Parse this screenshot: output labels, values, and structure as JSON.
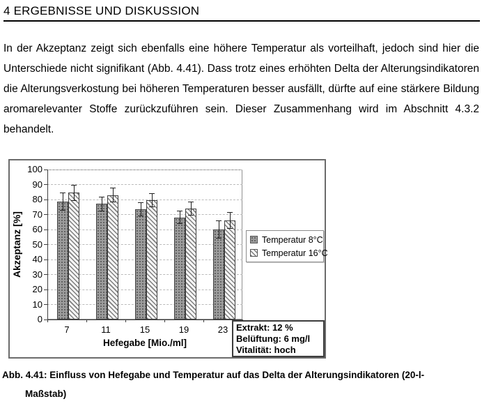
{
  "document": {
    "heading": "4 ERGEBNISSE UND DISKUSSION",
    "paragraph": "In der Akzeptanz zeigt sich ebenfalls eine höhere Temperatur als vorteilhaft, jedoch sind hier die Unterschiede nicht signifikant (Abb. 4.41). Dass trotz eines erhöhten Delta der Alterungsindikatoren die Alterungsverkostung bei höheren Temperaturen besser ausfällt, dürfte auf eine stärkere Bildung aromarelevanter Stoffe zurückzuführen sein. Dieser Zusammenhang wird im Abschnitt 4.3.2 behandelt.",
    "caption_lines": [
      "Abb. 4.41: Einfluss von Hefegabe und Temperatur auf das Delta der Alterungsindikatoren (20-l-",
      "Maßstab)"
    ]
  },
  "chart_data": {
    "type": "bar",
    "title": "",
    "xlabel": "Hefegabe [Mio./ml]",
    "ylabel": "Akzeptanz [%]",
    "ylim": [
      0,
      100
    ],
    "yticks": [
      0,
      10,
      20,
      30,
      40,
      50,
      60,
      70,
      80,
      90,
      100
    ],
    "categories": [
      "7",
      "11",
      "15",
      "19",
      "23"
    ],
    "series": [
      {
        "name": "Temperatur 8°C",
        "pattern": "gray-dotted",
        "values": [
          78.5,
          77,
          73.5,
          68,
          60
        ],
        "errors": [
          6,
          5,
          4.5,
          4.5,
          6
        ]
      },
      {
        "name": "Temperatur 16°C",
        "pattern": "diagonal-hatch",
        "values": [
          84.5,
          83,
          79.5,
          74,
          66
        ],
        "errors": [
          5.5,
          5,
          4.5,
          4.5,
          5.5
        ]
      }
    ],
    "grid": "horizontal-dashed",
    "legend_position": "right-inside",
    "annotation_box_lines": [
      "Extrakt: 12 %",
      "Belüftung: 6 mg/l",
      "Vitalität: hoch"
    ],
    "colors": {
      "background": "#ffffff",
      "text": "#000000",
      "bar1_fill": "#9c9c9c",
      "bar1_dot": "#4f4f4f",
      "bar2_bg": "#f5f5f5",
      "bar2_line": "#7f7f7f",
      "bar_border": "#3f3f3f",
      "grid": "#bbbbbb",
      "axis": "#404040",
      "plot_border": "#909090",
      "error": "#1f1f1f",
      "chart_border": "#6b6b6b",
      "legend_border": "#8c8c8c",
      "infobox_border": "#3c3c3c"
    }
  }
}
